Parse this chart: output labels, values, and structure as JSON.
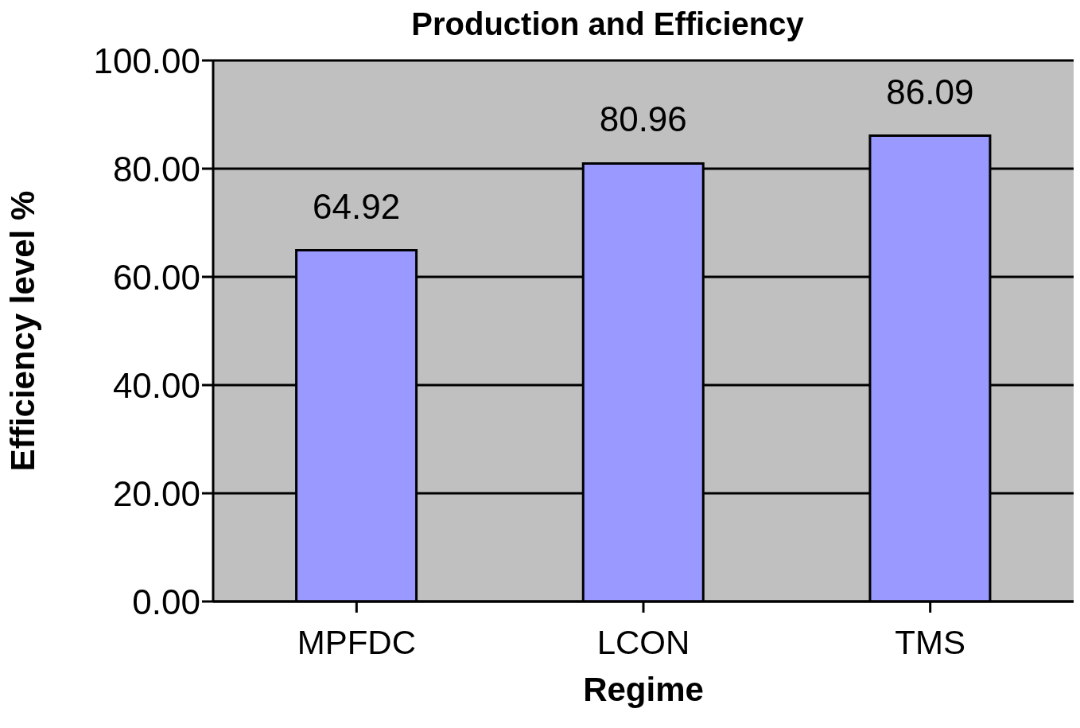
{
  "chart_data": {
    "type": "bar",
    "title": "Production and Efficiency",
    "xlabel": "Regime",
    "ylabel": "Efficiency level %",
    "categories": [
      "MPFDC",
      "LCON",
      "TMS"
    ],
    "values": [
      64.92,
      80.96,
      86.09
    ],
    "color": "#9999ff",
    "ylim": [
      0,
      100
    ],
    "yticks": [
      {
        "value": 0,
        "label": "0.00"
      },
      {
        "value": 20,
        "label": "20.00"
      },
      {
        "value": 40,
        "label": "40.00"
      },
      {
        "value": 60,
        "label": "60.00"
      },
      {
        "value": 80,
        "label": "80.00"
      },
      {
        "value": 100,
        "label": "100.00"
      }
    ],
    "grid": "y",
    "data_labels": true
  }
}
